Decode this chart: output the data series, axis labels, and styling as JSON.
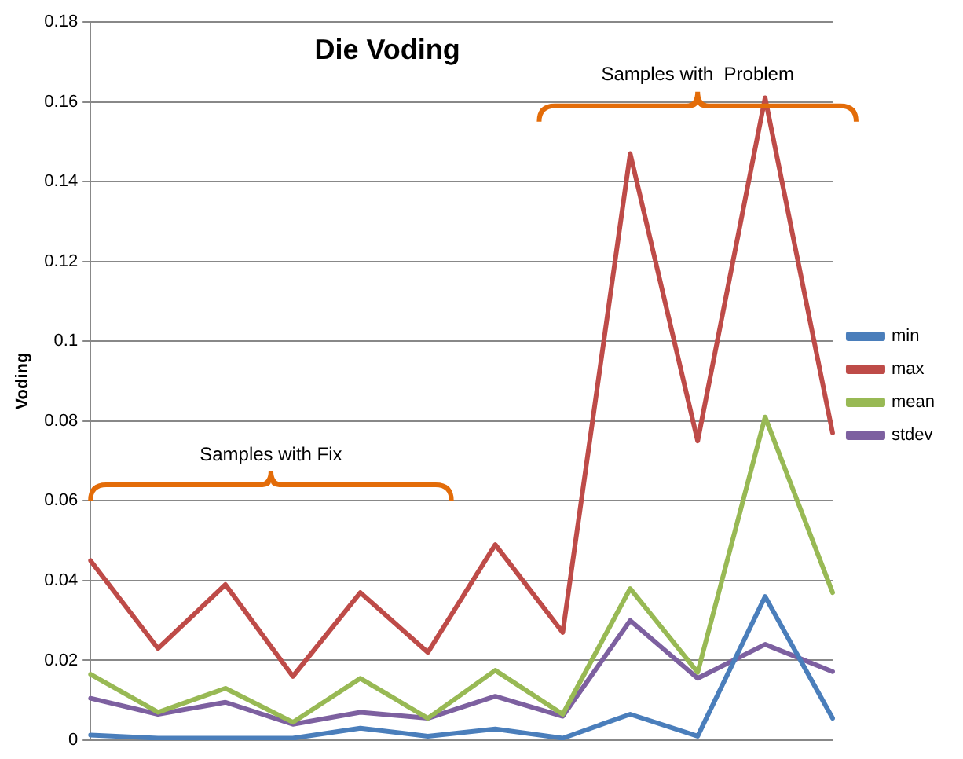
{
  "chart_data": {
    "type": "line",
    "title": "Die Voding",
    "ylabel": "Voding",
    "categories": [
      null,
      null,
      null,
      null,
      null,
      null,
      null,
      null,
      null,
      null,
      null,
      null
    ],
    "series": [
      {
        "name": "min",
        "color": "#4a7ebb",
        "values": [
          0.0013,
          0.0005,
          0.0005,
          0.0005,
          0.003,
          0.001,
          0.0028,
          0.0005,
          0.0065,
          0.001,
          0.036,
          0.0055
        ]
      },
      {
        "name": "max",
        "color": "#be4b48",
        "values": [
          0.045,
          0.023,
          0.039,
          0.016,
          0.037,
          0.022,
          0.049,
          0.027,
          0.147,
          0.075,
          0.161,
          0.077
        ]
      },
      {
        "name": "mean",
        "color": "#98b954",
        "values": [
          0.0165,
          0.007,
          0.013,
          0.0045,
          0.0155,
          0.0055,
          0.0175,
          0.0065,
          0.038,
          0.017,
          0.081,
          0.037
        ]
      },
      {
        "name": "stdev",
        "color": "#7d60a0",
        "values": [
          0.0105,
          0.0065,
          0.0095,
          0.004,
          0.007,
          0.0055,
          0.011,
          0.006,
          0.03,
          0.0155,
          0.024,
          0.0172
        ]
      }
    ],
    "ylim": [
      0,
      0.18
    ],
    "yticks": [
      0,
      0.02,
      0.04,
      0.06,
      0.08,
      0.1,
      0.12,
      0.14,
      0.16,
      0.18
    ],
    "grid": "y",
    "legend": "right",
    "marker": "none",
    "line_style": "solid",
    "tick_labels": "y",
    "annotations": [
      "Samples with Fix",
      "Samples with  Problem"
    ]
  }
}
